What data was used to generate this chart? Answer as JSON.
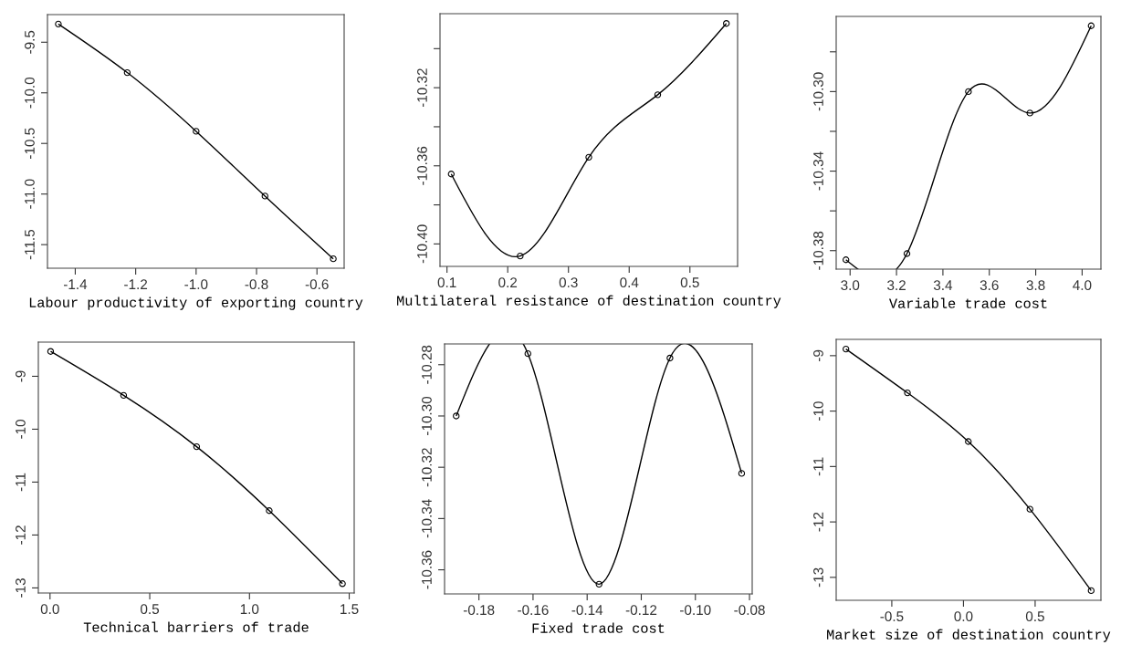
{
  "chart_data": [
    {
      "type": "line",
      "xlabel": "Labour productivity of exporting country",
      "x": [
        -1.456,
        -1.228,
        -1.0,
        -0.772,
        -0.546
      ],
      "values": [
        -9.32,
        -9.8,
        -10.38,
        -11.02,
        -11.64
      ],
      "color": "#000000",
      "marker": "circle",
      "xlim": [
        -1.492,
        -0.51
      ],
      "ylim": [
        -11.733,
        -9.227
      ],
      "xticks": [
        -1.4,
        -1.2,
        {
          "value": -1.0,
          "label": "-1.0"
        },
        -0.8,
        -0.6
      ],
      "yticks": [
        -9.5,
        {
          "value": -10.0,
          "label": "-10.0"
        },
        -10.5,
        {
          "value": -11.0,
          "label": "-11.0"
        },
        -11.5
      ]
    },
    {
      "type": "line",
      "xlabel": "Multilateral resistance of destination country",
      "x": [
        0.107,
        0.2205,
        0.3335,
        0.447,
        0.56
      ],
      "values": [
        -10.3642,
        -10.4062,
        -10.3556,
        -10.3236,
        -10.2871
      ],
      "color": "#000000",
      "marker": "circle",
      "xlim": [
        0.0885,
        0.5785
      ],
      "ylim": [
        -10.4115,
        -10.2821
      ],
      "xticks": [
        0.1,
        0.2,
        0.3,
        0.4,
        0.5
      ],
      "yticks": [
        {
          "value": -10.3,
          "label": null
        },
        -10.32,
        {
          "value": -10.34,
          "label": null
        },
        -10.36,
        {
          "value": -10.38,
          "label": null
        },
        {
          "value": -10.4,
          "label": "-10.40"
        }
      ]
    },
    {
      "type": "line",
      "xlabel": "Variable trade cost",
      "x": [
        2.982,
        3.245,
        3.51,
        3.775,
        4.039
      ],
      "values": [
        -10.3846,
        -10.3815,
        -10.3,
        -10.3108,
        -10.2669
      ],
      "color": "#000000",
      "marker": "circle",
      "xlim": [
        2.94,
        4.081
      ],
      "ylim": [
        -10.3893,
        -10.2622
      ],
      "xticks": [
        {
          "value": 3.0,
          "label": "3.0"
        },
        3.2,
        3.4,
        3.6,
        3.8,
        {
          "value": 4.0,
          "label": "4.0"
        }
      ],
      "yticks": [
        {
          "value": -10.28,
          "label": null
        },
        {
          "value": -10.3,
          "label": "-10.30"
        },
        {
          "value": -10.32,
          "label": null
        },
        -10.34,
        {
          "value": -10.36,
          "label": null
        },
        -10.38
      ]
    },
    {
      "type": "line",
      "xlabel": "Technical barriers of trade",
      "x": [
        0.003,
        0.369,
        0.735,
        1.099,
        1.466
      ],
      "values": [
        -8.53,
        -9.36,
        -10.33,
        -11.54,
        -12.92
      ],
      "color": "#000000",
      "marker": "circle",
      "xlim": [
        -0.0586,
        1.525
      ],
      "ylim": [
        -13.096,
        -8.354
      ],
      "xticks": [
        {
          "value": 0.0,
          "label": "0.0"
        },
        0.5,
        {
          "value": 1.0,
          "label": "1.0"
        },
        1.5
      ],
      "yticks": [
        -9,
        -10,
        -11,
        -12,
        -13
      ]
    },
    {
      "type": "line",
      "xlabel": "Fixed trade cost",
      "x": [
        -0.1884,
        -0.1619,
        -0.1356,
        -0.1094,
        -0.0829
      ],
      "values": [
        -10.3,
        -10.2757,
        -10.3656,
        -10.2774,
        -10.3224
      ],
      "color": "#000000",
      "marker": "circle",
      "xlim": [
        -0.1927,
        -0.079
      ],
      "ylim": [
        -10.3694,
        -10.2719
      ],
      "xticks": [
        -0.18,
        -0.16,
        -0.14,
        -0.12,
        {
          "value": -0.1,
          "label": "-0.10"
        },
        -0.08
      ],
      "yticks": [
        -10.28,
        {
          "value": -10.3,
          "label": "-10.30"
        },
        -10.32,
        -10.34,
        -10.36
      ]
    },
    {
      "type": "line",
      "xlabel": "Market size of destination country",
      "x": [
        -0.82,
        -0.391,
        0.034,
        0.464,
        0.891
      ],
      "values": [
        -8.88,
        -9.67,
        -10.55,
        -11.77,
        -13.24
      ],
      "color": "#000000",
      "marker": "circle",
      "xlim": [
        -0.888,
        0.959
      ],
      "ylim": [
        -13.414,
        -8.706
      ],
      "xticks": [
        -0.5,
        {
          "value": 0.0,
          "label": "0.0"
        },
        0.5
      ],
      "yticks": [
        -9,
        -10,
        -11,
        -12,
        -13
      ]
    }
  ]
}
